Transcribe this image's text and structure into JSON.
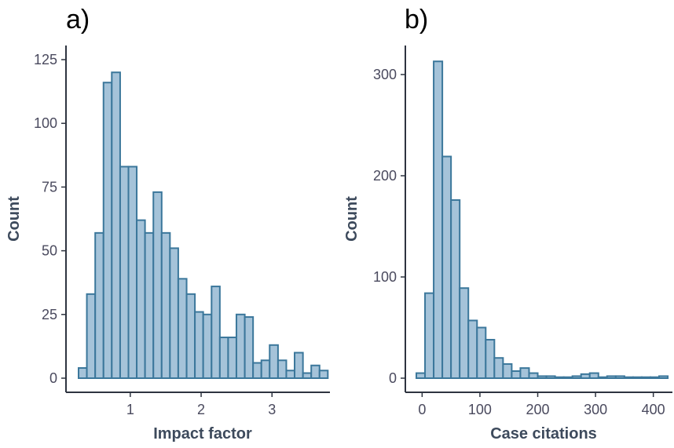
{
  "figure": {
    "colors": {
      "bar_fill": "#a5c3d9",
      "bar_stroke": "#3b779b",
      "axis": "#2e3440",
      "text": "#4a4a5e"
    }
  },
  "chart_data": [
    {
      "type": "bar",
      "panel_label": "a)",
      "xlabel": "Impact factor",
      "ylabel": "Count",
      "xlim": [
        0.1,
        3.75
      ],
      "ylim": [
        0,
        125
      ],
      "xticks": [
        1,
        2,
        3
      ],
      "yticks": [
        0,
        25,
        50,
        75,
        100,
        125
      ],
      "bins": [
        {
          "x0": 0.27,
          "x1": 0.387,
          "count": 4
        },
        {
          "x0": 0.387,
          "x1": 0.505,
          "count": 33
        },
        {
          "x0": 0.505,
          "x1": 0.622,
          "count": 57
        },
        {
          "x0": 0.622,
          "x1": 0.739,
          "count": 116
        },
        {
          "x0": 0.739,
          "x1": 0.857,
          "count": 120
        },
        {
          "x0": 0.857,
          "x1": 0.974,
          "count": 83
        },
        {
          "x0": 0.974,
          "x1": 1.091,
          "count": 83
        },
        {
          "x0": 1.091,
          "x1": 1.208,
          "count": 62
        },
        {
          "x0": 1.208,
          "x1": 1.326,
          "count": 57
        },
        {
          "x0": 1.326,
          "x1": 1.443,
          "count": 73
        },
        {
          "x0": 1.443,
          "x1": 1.56,
          "count": 57
        },
        {
          "x0": 1.56,
          "x1": 1.677,
          "count": 51
        },
        {
          "x0": 1.677,
          "x1": 1.795,
          "count": 39
        },
        {
          "x0": 1.795,
          "x1": 1.912,
          "count": 33
        },
        {
          "x0": 1.912,
          "x1": 2.029,
          "count": 26
        },
        {
          "x0": 2.029,
          "x1": 2.147,
          "count": 25
        },
        {
          "x0": 2.147,
          "x1": 2.264,
          "count": 36
        },
        {
          "x0": 2.264,
          "x1": 2.381,
          "count": 16
        },
        {
          "x0": 2.381,
          "x1": 2.498,
          "count": 16
        },
        {
          "x0": 2.498,
          "x1": 2.616,
          "count": 25
        },
        {
          "x0": 2.616,
          "x1": 2.733,
          "count": 24
        },
        {
          "x0": 2.733,
          "x1": 2.85,
          "count": 6
        },
        {
          "x0": 2.85,
          "x1": 2.967,
          "count": 7
        },
        {
          "x0": 2.967,
          "x1": 3.085,
          "count": 13
        },
        {
          "x0": 3.085,
          "x1": 3.202,
          "count": 7
        },
        {
          "x0": 3.202,
          "x1": 3.319,
          "count": 3
        },
        {
          "x0": 3.319,
          "x1": 3.437,
          "count": 10
        },
        {
          "x0": 3.437,
          "x1": 3.554,
          "count": 2
        },
        {
          "x0": 3.554,
          "x1": 3.671,
          "count": 5
        },
        {
          "x0": 3.671,
          "x1": 3.788,
          "count": 3
        }
      ]
    },
    {
      "type": "bar",
      "panel_label": "b)",
      "xlabel": "Case citations",
      "ylabel": "Count",
      "xlim": [
        -12,
        430
      ],
      "ylim": [
        0,
        330
      ],
      "xticks": [
        0,
        100,
        200,
        300,
        400
      ],
      "yticks": [
        0,
        100,
        200,
        300
      ],
      "bins": [
        {
          "x0": -10,
          "x1": 5,
          "count": 5
        },
        {
          "x0": 5,
          "x1": 20,
          "count": 84
        },
        {
          "x0": 20,
          "x1": 35,
          "count": 313
        },
        {
          "x0": 35,
          "x1": 50,
          "count": 219
        },
        {
          "x0": 50,
          "x1": 65,
          "count": 176
        },
        {
          "x0": 65,
          "x1": 80,
          "count": 89
        },
        {
          "x0": 80,
          "x1": 95,
          "count": 57
        },
        {
          "x0": 95,
          "x1": 110,
          "count": 50
        },
        {
          "x0": 110,
          "x1": 125,
          "count": 38
        },
        {
          "x0": 125,
          "x1": 140,
          "count": 20
        },
        {
          "x0": 140,
          "x1": 155,
          "count": 14
        },
        {
          "x0": 155,
          "x1": 170,
          "count": 7
        },
        {
          "x0": 170,
          "x1": 185,
          "count": 10
        },
        {
          "x0": 185,
          "x1": 200,
          "count": 5
        },
        {
          "x0": 200,
          "x1": 215,
          "count": 2
        },
        {
          "x0": 215,
          "x1": 230,
          "count": 2
        },
        {
          "x0": 230,
          "x1": 245,
          "count": 1
        },
        {
          "x0": 245,
          "x1": 260,
          "count": 1
        },
        {
          "x0": 260,
          "x1": 275,
          "count": 2
        },
        {
          "x0": 275,
          "x1": 290,
          "count": 4
        },
        {
          "x0": 290,
          "x1": 305,
          "count": 5
        },
        {
          "x0": 305,
          "x1": 320,
          "count": 1
        },
        {
          "x0": 320,
          "x1": 335,
          "count": 2
        },
        {
          "x0": 335,
          "x1": 350,
          "count": 2
        },
        {
          "x0": 350,
          "x1": 365,
          "count": 1
        },
        {
          "x0": 365,
          "x1": 380,
          "count": 1
        },
        {
          "x0": 380,
          "x1": 395,
          "count": 1
        },
        {
          "x0": 395,
          "x1": 410,
          "count": 1
        },
        {
          "x0": 410,
          "x1": 425,
          "count": 2
        }
      ]
    }
  ]
}
